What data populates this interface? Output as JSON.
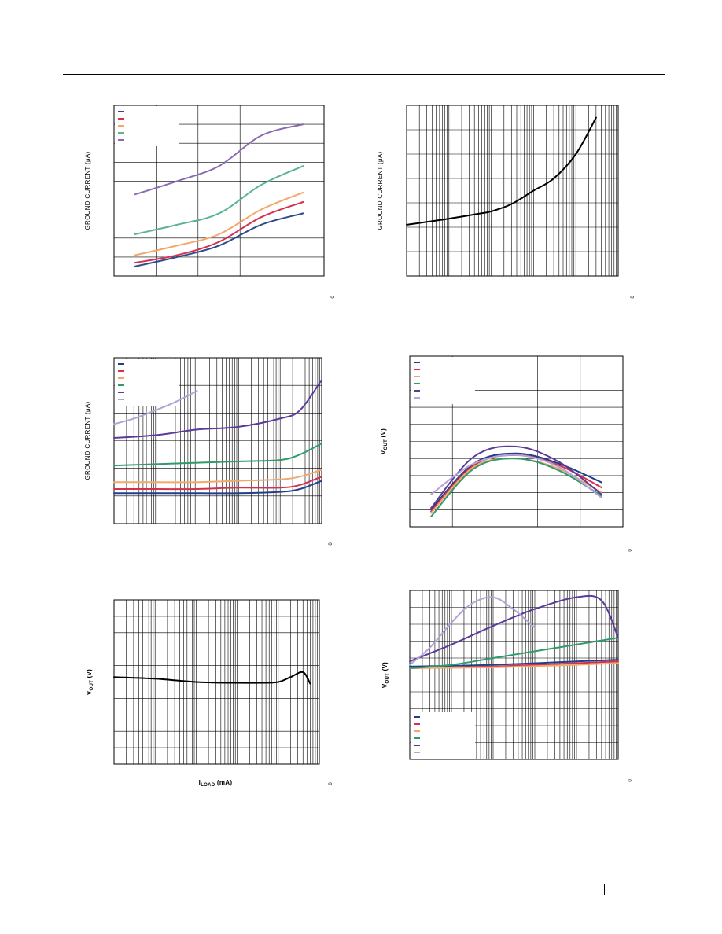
{
  "page": {
    "header_rule": true,
    "footer_mark": true
  },
  "charts": [
    {
      "id": "c1",
      "fig_id": "0",
      "ylabel": "GROUND CURRENT  (μA)",
      "ylabel_html": null,
      "xlabel_html": null,
      "xscale": "linear",
      "x_grid": 5,
      "y_grid": 9,
      "legend": {
        "colors": [
          "#2c4b8a",
          "#d6304f",
          "#f4a76b",
          "#5bb38f",
          "#8a6bb3"
        ],
        "placement": "top-left"
      }
    },
    {
      "id": "c2",
      "fig_id": "0",
      "ylabel": "GROUND CURRENT  (μA)",
      "ylabel_html": null,
      "xlabel_html": null,
      "xscale": "log",
      "y_grid": 7,
      "legend": null
    },
    {
      "id": "c3",
      "fig_id": "0",
      "ylabel": "GROUND CURRENT  (μA)",
      "ylabel_html": null,
      "xlabel_html": null,
      "xscale": "log",
      "y_grid": 6,
      "legend": {
        "colors": [
          "#1f3f8a",
          "#d6304f",
          "#f4a76b",
          "#2f9a6a",
          "#5a3a9a",
          "#b3a3d6"
        ],
        "placement": "top-left"
      }
    },
    {
      "id": "c4",
      "fig_id": "0",
      "ylabel": "",
      "ylabel_html": "V<tspan dy='2' font-size='6'>OUT</tspan><tspan dy='-2'> (V)</tspan>",
      "xlabel_html": null,
      "xscale": "linear",
      "x_grid": 5,
      "y_grid": 10,
      "legend": {
        "colors": [
          "#1f3f8a",
          "#d6304f",
          "#f4a76b",
          "#2f9a6a",
          "#5a3a9a",
          "#b3a3d6"
        ],
        "placement": "top-left"
      }
    },
    {
      "id": "c5",
      "fig_id": "0",
      "ylabel": "",
      "ylabel_html": "V<tspan dy='2' font-size='6'>OUT</tspan><tspan dy='-2'> (V)</tspan>",
      "xlabel_html": "I<tspan dy='2' font-size='6'>LOAD</tspan><tspan dy='-2'> (mA)</tspan>",
      "xscale": "log",
      "y_grid": 10,
      "legend": null
    },
    {
      "id": "c6",
      "fig_id": "0",
      "ylabel": "",
      "ylabel_html": "V<tspan dy='2' font-size='6'>OUT</tspan><tspan dy='-2'> (V)</tspan>",
      "xlabel_html": null,
      "xscale": "log",
      "y_grid": 10,
      "legend": {
        "colors": [
          "#1f3f8a",
          "#d6304f",
          "#f4a76b",
          "#2f9a6a",
          "#5a3a9a",
          "#b3a3d6"
        ],
        "placement": "bottom-left"
      }
    }
  ],
  "chart_data": [
    {
      "type": "line",
      "xlim": [
        0,
        5
      ],
      "ylim": [
        0,
        9
      ],
      "series": [
        {
          "color": "#2c4b8a",
          "x": [
            0.5,
            1.5,
            2.5,
            3.5,
            4.5
          ],
          "y": [
            0.5,
            1.0,
            1.6,
            2.7,
            3.3
          ]
        },
        {
          "color": "#d6304f",
          "x": [
            0.5,
            1.5,
            2.5,
            3.5,
            4.5
          ],
          "y": [
            0.7,
            1.1,
            1.8,
            3.1,
            3.9
          ]
        },
        {
          "color": "#f4a76b",
          "x": [
            0.5,
            1.5,
            2.5,
            3.5,
            4.5
          ],
          "y": [
            1.1,
            1.6,
            2.2,
            3.5,
            4.4
          ]
        },
        {
          "color": "#5bb38f",
          "x": [
            0.5,
            1.5,
            2.5,
            3.5,
            4.5
          ],
          "y": [
            2.2,
            2.7,
            3.3,
            4.8,
            5.8
          ]
        },
        {
          "color": "#8a6bb3",
          "x": [
            0.5,
            1.5,
            2.5,
            3.5,
            4.5
          ],
          "y": [
            4.3,
            5.0,
            5.8,
            7.4,
            8.0
          ]
        }
      ]
    },
    {
      "type": "line",
      "xlim": [
        0.001,
        100
      ],
      "ylim": [
        0,
        7
      ],
      "series": [
        {
          "color": "#000000",
          "x": [
            0.001,
            0.01,
            0.05,
            0.1,
            0.3,
            1,
            3,
            10,
            30
          ],
          "y": [
            2.1,
            2.35,
            2.55,
            2.65,
            2.95,
            3.5,
            4.0,
            5.0,
            6.5
          ]
        }
      ]
    },
    {
      "type": "line",
      "xlim": [
        0.001,
        100
      ],
      "ylim": [
        0,
        6
      ],
      "series": [
        {
          "color": "#1f3f8a",
          "x": [
            0.001,
            0.01,
            0.1,
            1,
            10,
            30,
            100
          ],
          "y": [
            1.1,
            1.1,
            1.1,
            1.1,
            1.15,
            1.25,
            1.55
          ]
        },
        {
          "color": "#d6304f",
          "x": [
            0.001,
            0.01,
            0.1,
            1,
            10,
            30,
            100
          ],
          "y": [
            1.25,
            1.25,
            1.25,
            1.3,
            1.3,
            1.4,
            1.7
          ]
        },
        {
          "color": "#f4a76b",
          "x": [
            0.001,
            0.01,
            0.1,
            1,
            10,
            30,
            100
          ],
          "y": [
            1.5,
            1.5,
            1.5,
            1.55,
            1.6,
            1.7,
            1.95
          ]
        },
        {
          "color": "#2f9a6a",
          "x": [
            0.001,
            0.01,
            0.1,
            1,
            10,
            30,
            100
          ],
          "y": [
            2.1,
            2.15,
            2.2,
            2.25,
            2.3,
            2.5,
            2.9
          ]
        },
        {
          "color": "#5a3a9a",
          "x": [
            0.001,
            0.01,
            0.1,
            1,
            10,
            30,
            100
          ],
          "y": [
            3.1,
            3.2,
            3.4,
            3.5,
            3.8,
            4.1,
            5.2
          ]
        },
        {
          "color": "#b3a3d6",
          "x": [
            0.001,
            0.003,
            0.01,
            0.03,
            0.1
          ],
          "y": [
            3.6,
            3.8,
            4.1,
            4.4,
            4.8
          ]
        }
      ]
    },
    {
      "type": "line",
      "xlim": [
        0,
        5
      ],
      "ylim": [
        0,
        10
      ],
      "series": [
        {
          "color": "#1f3f8a",
          "x": [
            0.5,
            1.5,
            2.5,
            3.5,
            4.5
          ],
          "y": [
            1.0,
            3.7,
            4.3,
            3.7,
            2.6
          ]
        },
        {
          "color": "#d6304f",
          "x": [
            0.5,
            1.5,
            2.5,
            3.5,
            4.5
          ],
          "y": [
            0.9,
            3.6,
            4.2,
            3.6,
            2.3
          ]
        },
        {
          "color": "#f4a76b",
          "x": [
            0.5,
            1.5,
            2.5,
            3.5,
            4.5
          ],
          "y": [
            0.8,
            3.5,
            4.0,
            3.4,
            2.0
          ]
        },
        {
          "color": "#2f9a6a",
          "x": [
            0.5,
            1.5,
            2.5,
            3.5,
            4.5
          ],
          "y": [
            0.6,
            3.4,
            4.0,
            3.3,
            1.8
          ]
        },
        {
          "color": "#5a3a9a",
          "x": [
            0.5,
            1.5,
            2.5,
            3.5,
            4.5
          ],
          "y": [
            1.1,
            4.1,
            4.7,
            3.8,
            1.9
          ]
        },
        {
          "color": "#b3a3d6",
          "x": [
            0.5,
            1.5,
            2.5,
            3.5,
            4.5
          ],
          "y": [
            1.9,
            3.7,
            4.2,
            3.5,
            1.7
          ]
        }
      ]
    },
    {
      "type": "line",
      "xlim": [
        0.01,
        1000
      ],
      "ylim": [
        0,
        10
      ],
      "series": [
        {
          "color": "#000000",
          "x": [
            0.01,
            0.1,
            1,
            10,
            40,
            100,
            200,
            400,
            600
          ],
          "y": [
            5.3,
            5.2,
            5.0,
            4.95,
            4.95,
            5.0,
            5.3,
            5.6,
            4.9
          ]
        }
      ]
    },
    {
      "type": "line",
      "xlim": [
        0.01,
        1000
      ],
      "ylim": [
        0,
        10
      ],
      "series": [
        {
          "color": "#1f3f8a",
          "x": [
            0.01,
            1,
            100,
            1000
          ],
          "y": [
            5.5,
            5.6,
            5.8,
            5.9
          ]
        },
        {
          "color": "#d6304f",
          "x": [
            0.01,
            1,
            100,
            1000
          ],
          "y": [
            5.4,
            5.5,
            5.7,
            5.8
          ]
        },
        {
          "color": "#f4a76b",
          "x": [
            0.01,
            1,
            100,
            1000
          ],
          "y": [
            5.4,
            5.45,
            5.6,
            5.7
          ]
        },
        {
          "color": "#2f9a6a",
          "x": [
            0.01,
            0.1,
            1,
            10,
            100,
            1000
          ],
          "y": [
            5.4,
            5.6,
            6.0,
            6.4,
            6.8,
            7.2
          ]
        },
        {
          "color": "#5a3a9a",
          "x": [
            0.01,
            0.1,
            1,
            10,
            100,
            400,
            1000
          ],
          "y": [
            5.8,
            6.8,
            7.9,
            8.9,
            9.6,
            9.4,
            7.2
          ]
        },
        {
          "color": "#b3a3d6",
          "x": [
            0.01,
            0.03,
            0.1,
            0.3,
            1,
            3,
            10
          ],
          "y": [
            5.6,
            6.6,
            8.1,
            9.2,
            9.6,
            8.9,
            7.8
          ]
        }
      ]
    }
  ]
}
